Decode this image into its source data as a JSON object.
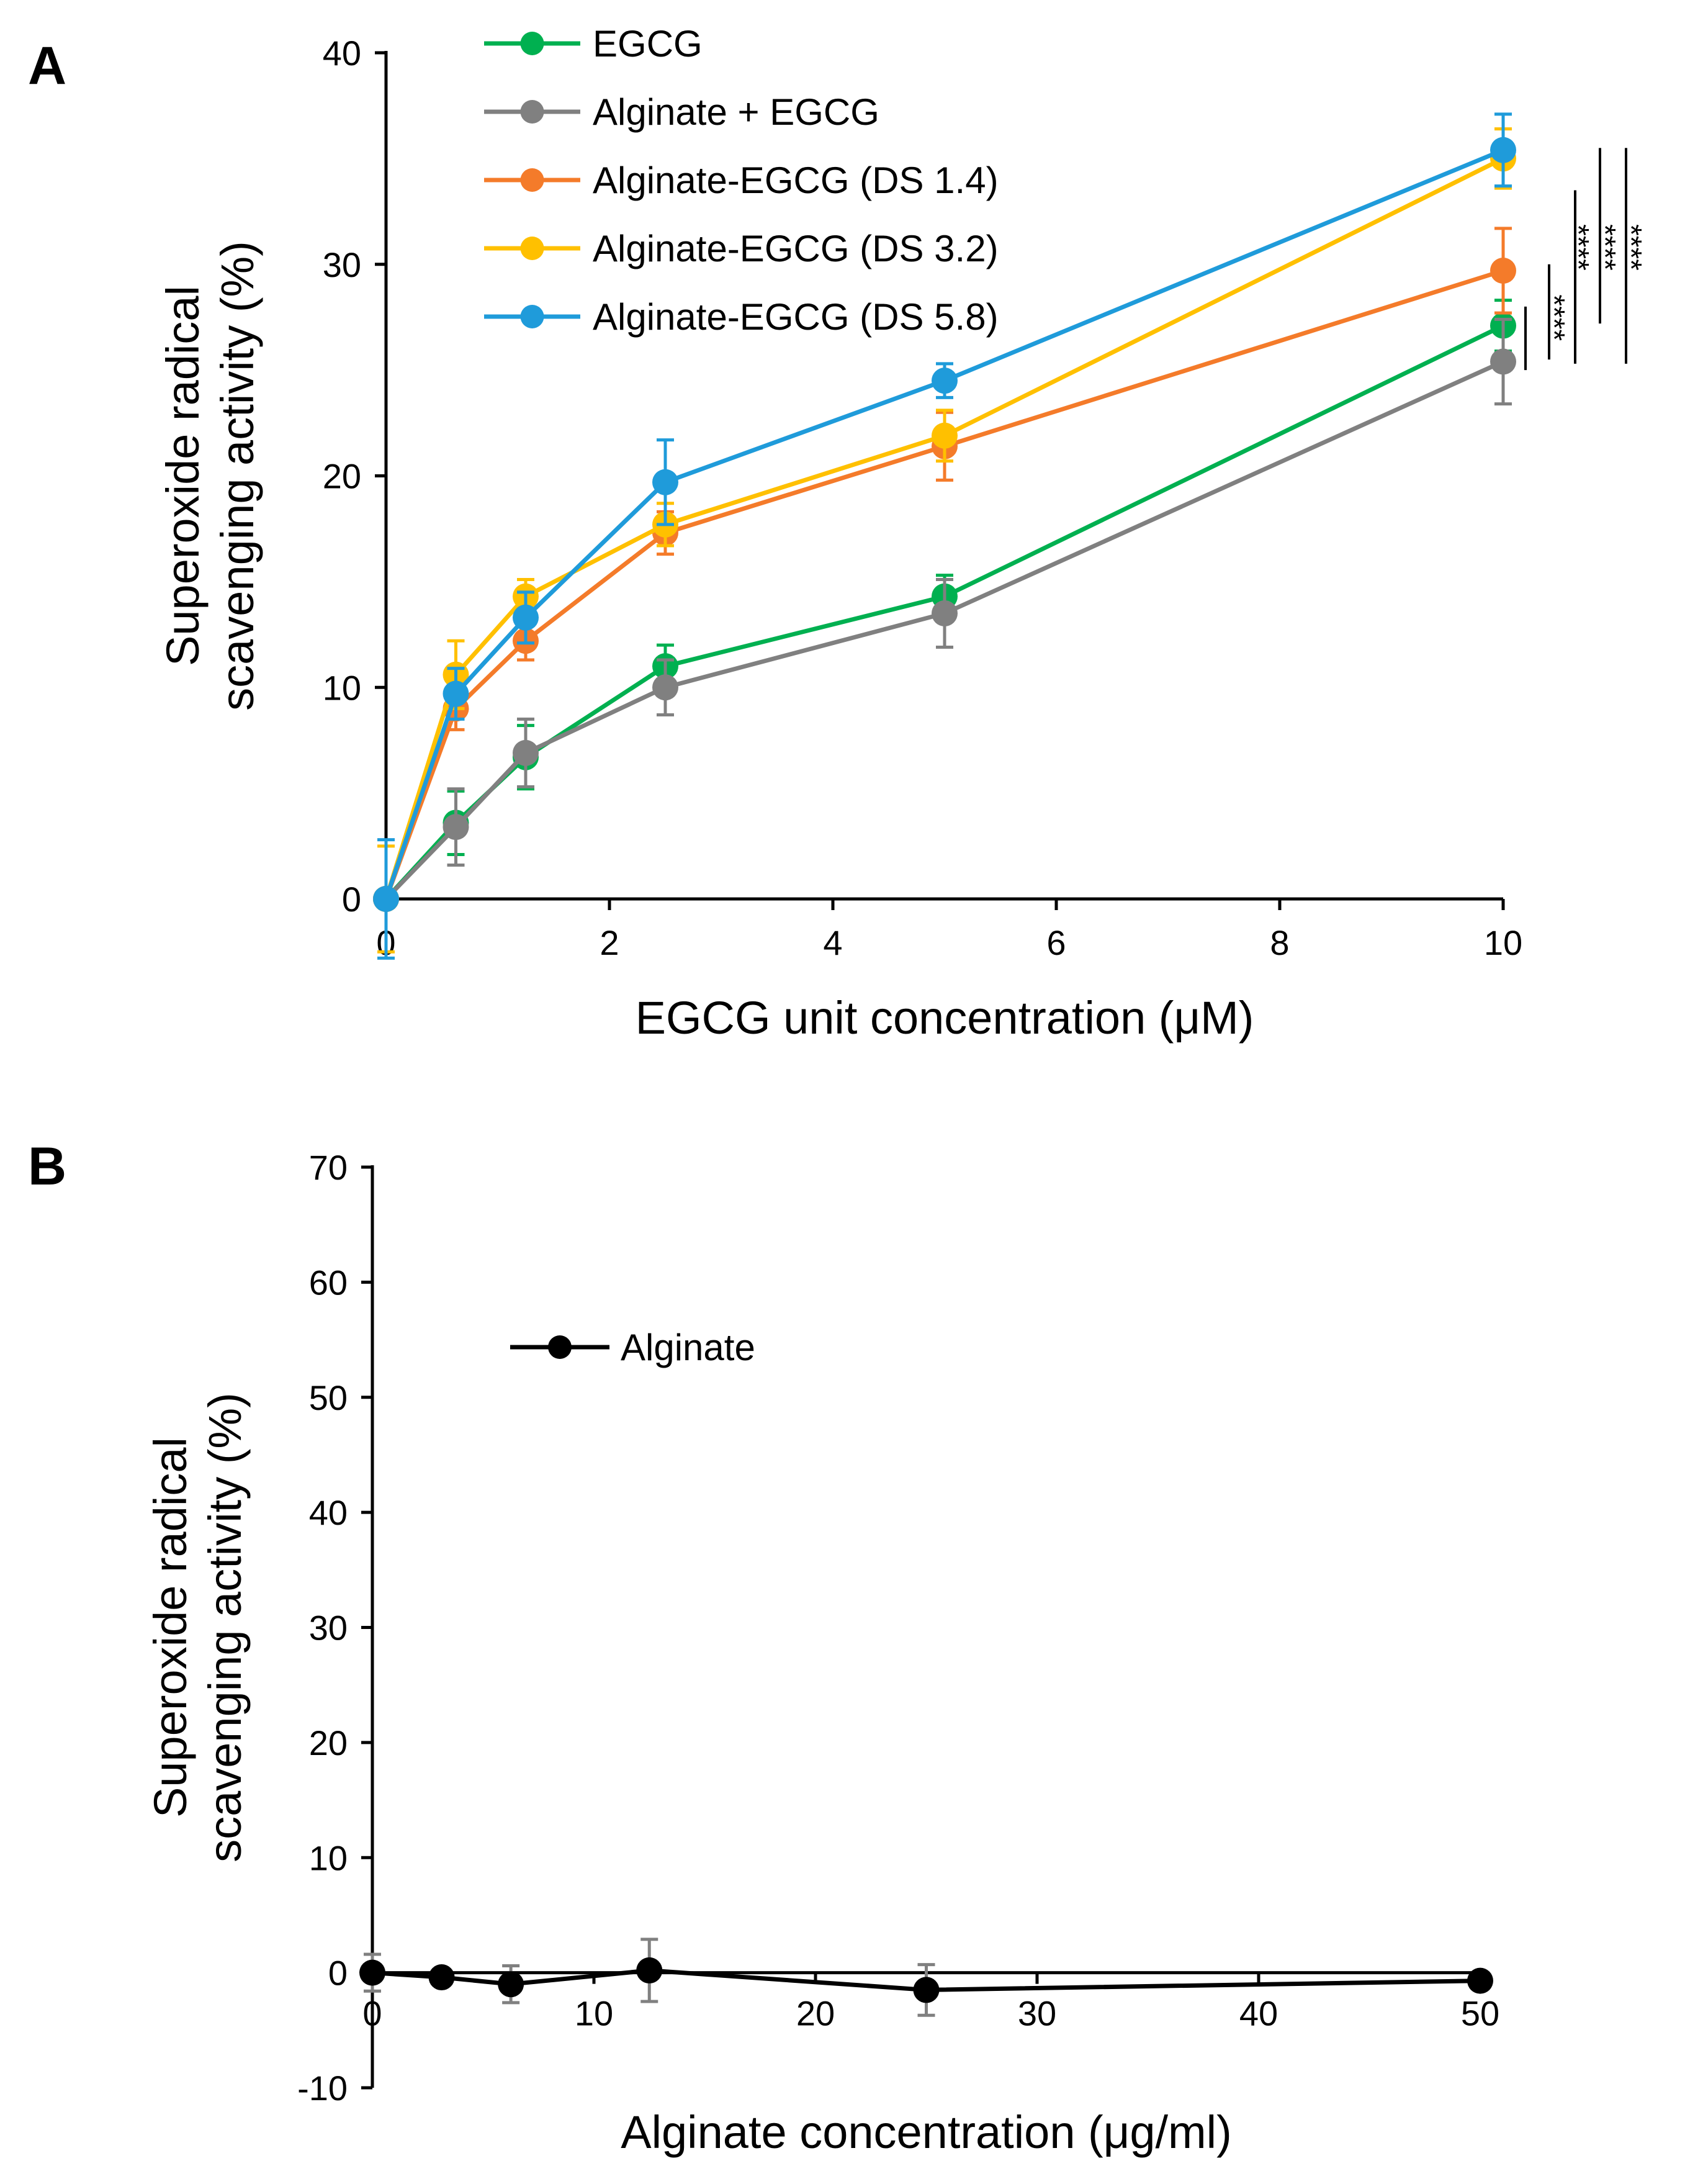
{
  "chart_data": [
    {
      "panel": "A",
      "type": "line",
      "xlabel": "EGCG unit concentration (μM)",
      "ylabel_line1": "Superoxide radical",
      "ylabel_line2": "scavenging activity (%)",
      "xlim": [
        0,
        10
      ],
      "ylim": [
        0,
        40
      ],
      "xticks": [
        0,
        2,
        4,
        6,
        8,
        10
      ],
      "yticks": [
        0,
        10,
        20,
        30,
        40
      ],
      "x": [
        0,
        0.625,
        1.25,
        2.5,
        5,
        10
      ],
      "series": [
        {
          "name": "EGCG",
          "color": "#00B050",
          "values": [
            0,
            3.6,
            6.7,
            11.0,
            14.3,
            27.1
          ],
          "errors": [
            0,
            1.5,
            1.5,
            1.0,
            1.0,
            1.2
          ]
        },
        {
          "name": "Alginate  + EGCG",
          "color": "#808080",
          "values": [
            0,
            3.4,
            6.9,
            10.0,
            13.5,
            25.4
          ],
          "errors": [
            0,
            1.8,
            1.6,
            1.3,
            1.6,
            2.0
          ]
        },
        {
          "name": "Alginate-EGCG  (DS 1.4)",
          "color": "#F47B2A",
          "values": [
            0,
            9.0,
            12.2,
            17.3,
            21.4,
            29.7
          ],
          "errors": [
            0,
            1.0,
            0.9,
            1.0,
            1.6,
            2.0
          ]
        },
        {
          "name": "Alginate-EGCG  (DS 3.2)",
          "color": "#FFC000",
          "values": [
            0,
            10.6,
            14.3,
            17.7,
            21.9,
            35.0
          ],
          "errors": [
            2.5,
            1.6,
            0.8,
            1.0,
            1.2,
            1.4
          ]
        },
        {
          "name": "Alginate-EGCG  (DS 5.8)",
          "color": "#1F9BDA",
          "values": [
            0,
            9.7,
            13.3,
            19.7,
            24.5,
            35.4
          ],
          "errors": [
            2.8,
            1.2,
            1.2,
            2.0,
            0.8,
            1.7
          ]
        }
      ],
      "significance": [
        "*",
        "***",
        "****",
        "****",
        "****"
      ]
    },
    {
      "panel": "B",
      "type": "line",
      "xlabel": "Alginate concentration (μg/ml)",
      "ylabel_line1": "Superoxide radical",
      "ylabel_line2": "scavenging activity (%)",
      "xlim": [
        0,
        50
      ],
      "ylim": [
        -10,
        70
      ],
      "xticks": [
        0,
        10,
        20,
        30,
        40,
        50
      ],
      "yticks": [
        -10,
        0,
        10,
        20,
        30,
        40,
        50,
        60,
        70
      ],
      "x": [
        0,
        3.125,
        6.25,
        12.5,
        25,
        50
      ],
      "series": [
        {
          "name": "Alginate",
          "color": "#000000",
          "values": [
            0,
            -0.4,
            -1.0,
            0.2,
            -1.5,
            -0.7
          ],
          "errors": [
            1.6,
            0.5,
            1.6,
            2.7,
            2.2,
            0.5
          ]
        }
      ]
    }
  ]
}
